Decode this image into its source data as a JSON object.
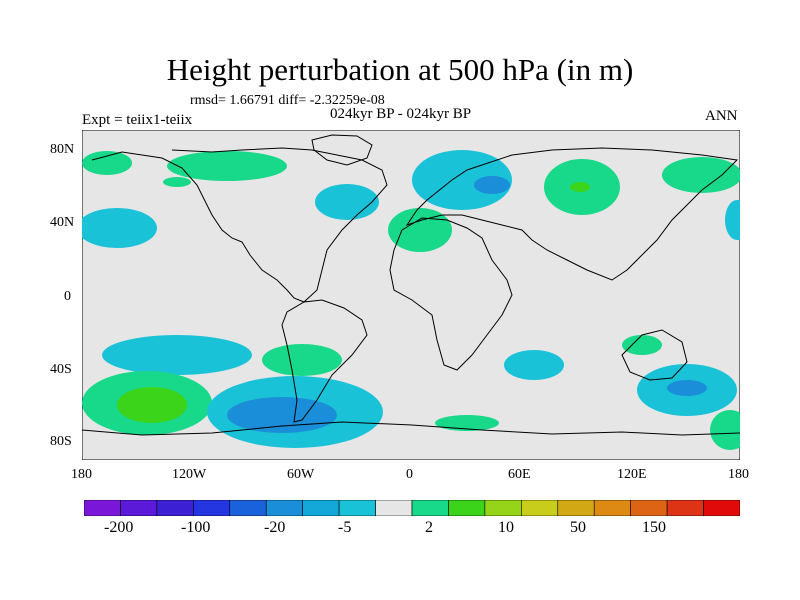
{
  "title": "Height perturbation at 500 hPa (in m)",
  "stats": "rmsd= 1.66791 diff= -2.32259e-08",
  "period": "024kyr BP - 024kyr BP",
  "experiment": "Expt = teiix1-teiix",
  "season": "ANN",
  "lat_labels": [
    "80N",
    "40N",
    "0",
    "40S",
    "80S"
  ],
  "lon_labels": [
    "180",
    "120W",
    "60W",
    "0",
    "60E",
    "120E",
    "180"
  ],
  "colorbar": {
    "colors": [
      "#7a16d8",
      "#5b1ad8",
      "#3c20d4",
      "#2436e0",
      "#1a62dc",
      "#1a8ed8",
      "#14a8d8",
      "#1ac2d8",
      "#e6e6e6",
      "#18d88a",
      "#3cd41a",
      "#96d41a",
      "#c8cc1a",
      "#d2a814",
      "#dc8a14",
      "#dc6414",
      "#dc3414",
      "#e00a0a"
    ],
    "labels": [
      "-200",
      "-100",
      "-20",
      "-5",
      "2",
      "10",
      "50",
      "150"
    ]
  },
  "map": {
    "ocean_color": "#e6e6e6",
    "regions": [
      {
        "name": "north-pacific-west",
        "color": "#1ac2d8"
      },
      {
        "name": "north-pacific-green",
        "color": "#18d88a"
      },
      {
        "name": "north-atlantic-blue",
        "color": "#1ac2d8"
      },
      {
        "name": "europe-blue",
        "color": "#1ac2d8"
      },
      {
        "name": "mediterranean-green",
        "color": "#18d88a"
      },
      {
        "name": "central-asia-green",
        "color": "#18d88a"
      },
      {
        "name": "south-pacific-green",
        "color": "#3cd41a"
      },
      {
        "name": "southern-ocean-blue",
        "color": "#1a8ed8"
      },
      {
        "name": "australia-south-blue",
        "color": "#1a8ed8"
      }
    ]
  }
}
